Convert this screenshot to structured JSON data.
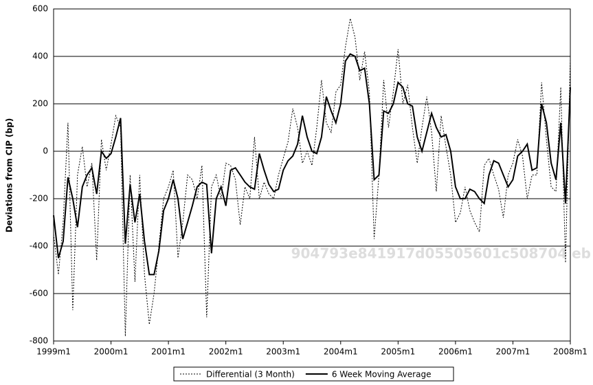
{
  "chart_data": {
    "type": "line",
    "y_label": "Deviations from CIP (bp)",
    "watermark": "904793e841917d05505601c508704 eb",
    "categories": [
      "1999m1",
      null,
      null,
      null,
      null,
      null,
      null,
      null,
      null,
      null,
      null,
      null,
      "2000m1",
      null,
      null,
      null,
      null,
      null,
      null,
      null,
      null,
      null,
      null,
      null,
      "2001m1",
      null,
      null,
      null,
      null,
      null,
      null,
      null,
      null,
      null,
      null,
      null,
      "2002m1",
      null,
      null,
      null,
      null,
      null,
      null,
      null,
      null,
      null,
      null,
      null,
      "2003m1",
      null,
      null,
      null,
      null,
      null,
      null,
      null,
      null,
      null,
      null,
      null,
      "2004m1",
      null,
      null,
      null,
      null,
      null,
      null,
      null,
      null,
      null,
      null,
      null,
      "2005m1",
      null,
      null,
      null,
      null,
      null,
      null,
      null,
      null,
      null,
      null,
      null,
      "2006m1",
      null,
      null,
      null,
      null,
      null,
      null,
      null,
      null,
      null,
      null,
      null,
      "2007m1",
      null,
      null,
      null,
      null,
      null,
      null,
      null,
      null,
      null,
      null,
      null,
      "2008m1"
    ],
    "series": [
      {
        "name": "Differential (3 Month)",
        "color": "#000000",
        "style": "dotted",
        "values": [
          -350,
          -520,
          -300,
          120,
          -670,
          -100,
          20,
          -150,
          -50,
          -460,
          50,
          -80,
          30,
          150,
          100,
          -780,
          -100,
          -550,
          -100,
          -520,
          -730,
          -600,
          -400,
          -200,
          -150,
          -80,
          -450,
          -300,
          -100,
          -120,
          -200,
          -60,
          -700,
          -150,
          -100,
          -200,
          -50,
          -60,
          -120,
          -310,
          -150,
          -200,
          60,
          -200,
          -130,
          -180,
          -200,
          -100,
          -30,
          40,
          180,
          100,
          -50,
          0,
          -60,
          100,
          300,
          120,
          80,
          250,
          280,
          440,
          560,
          480,
          300,
          420,
          250,
          -370,
          -100,
          300,
          100,
          250,
          430,
          200,
          280,
          100,
          -50,
          100,
          230,
          80,
          -170,
          150,
          20,
          -100,
          -300,
          -260,
          -150,
          -250,
          -300,
          -340,
          -60,
          -30,
          -100,
          -160,
          -280,
          -100,
          -50,
          50,
          -20,
          -200,
          -100,
          -100,
          290,
          50,
          -150,
          -170,
          270,
          -470,
          390
        ]
      },
      {
        "name": "6 Week Moving Average",
        "color": "#000000",
        "style": "solid",
        "values": [
          -270,
          -450,
          -380,
          -110,
          -200,
          -320,
          -150,
          -100,
          -70,
          -180,
          0,
          -30,
          -10,
          60,
          140,
          -390,
          -140,
          -300,
          -180,
          -380,
          -520,
          -520,
          -420,
          -250,
          -200,
          -120,
          -200,
          -370,
          -300,
          -230,
          -150,
          -130,
          -140,
          -430,
          -200,
          -150,
          -230,
          -80,
          -70,
          -100,
          -130,
          -150,
          -160,
          -10,
          -80,
          -140,
          -170,
          -160,
          -80,
          -40,
          -20,
          30,
          150,
          60,
          0,
          -10,
          60,
          230,
          170,
          120,
          200,
          380,
          410,
          400,
          340,
          350,
          200,
          -120,
          -100,
          170,
          160,
          200,
          290,
          270,
          200,
          190,
          60,
          0,
          80,
          160,
          100,
          60,
          70,
          0,
          -150,
          -200,
          -200,
          -160,
          -170,
          -200,
          -220,
          -100,
          -40,
          -50,
          -100,
          -150,
          -120,
          -20,
          0,
          30,
          -80,
          -70,
          200,
          120,
          -50,
          -120,
          120,
          -220,
          270
        ]
      }
    ],
    "ylim": [
      -800,
      600
    ],
    "yticks": [
      -800,
      -600,
      -400,
      -200,
      0,
      200,
      400,
      600
    ],
    "grid": true
  }
}
